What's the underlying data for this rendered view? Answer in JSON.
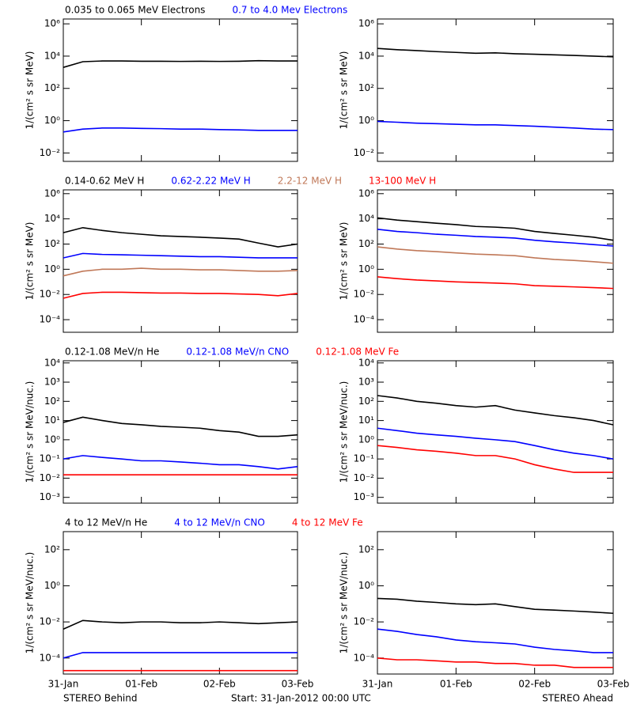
{
  "x_axis": {
    "xlim": [
      0,
      3
    ],
    "xticks": [
      {
        "value": 0,
        "label": "31-Jan"
      },
      {
        "value": 1,
        "label": "01-Feb"
      },
      {
        "value": 2,
        "label": "02-Feb"
      },
      {
        "value": 3,
        "label": "03-Feb"
      }
    ]
  },
  "footer": {
    "left": "STEREO Behind",
    "center": "Start: 31-Jan-2012 00:00 UTC",
    "right": "STEREO Ahead"
  },
  "chart_data": [
    {
      "type": "line",
      "log_scale": true,
      "grid": false,
      "ylabel": "1/(cm² s sr MeV)",
      "x": [
        0,
        0.25,
        0.5,
        0.75,
        1,
        1.25,
        1.5,
        1.75,
        2,
        2.25,
        2.5,
        2.75,
        3
      ],
      "ylim": [
        0.003,
        2000000
      ],
      "yticks": [
        {
          "value": 0.01,
          "label": "10⁻²"
        },
        {
          "value": 1,
          "label": "10⁰"
        },
        {
          "value": 100,
          "label": "10²"
        },
        {
          "value": 10000,
          "label": "10⁴"
        },
        {
          "value": 1000000,
          "label": "10⁶"
        }
      ],
      "series": [
        {
          "name": "0.035 to 0.065 MeV Electrons",
          "color": "#000000",
          "values": [
            2000,
            4500,
            5000,
            5000,
            4800,
            4800,
            4700,
            4800,
            4700,
            4800,
            5200,
            5000,
            5000
          ]
        },
        {
          "name": "0.7 to 4.0 Mev Electrons",
          "color": "#0000ff",
          "values": [
            0.2,
            0.3,
            0.35,
            0.35,
            0.33,
            0.32,
            0.3,
            0.3,
            0.28,
            0.27,
            0.25,
            0.25,
            0.25
          ]
        }
      ]
    },
    {
      "type": "line",
      "log_scale": true,
      "grid": false,
      "ylabel": "1/(cm² s sr MeV)",
      "x": [
        0,
        0.25,
        0.5,
        0.75,
        1,
        1.25,
        1.5,
        1.75,
        2,
        2.25,
        2.5,
        2.75,
        3
      ],
      "ylim": [
        0.003,
        2000000
      ],
      "yticks": [
        {
          "value": 0.01,
          "label": "10⁻²"
        },
        {
          "value": 1,
          "label": "10⁰"
        },
        {
          "value": 100,
          "label": "10²"
        },
        {
          "value": 10000,
          "label": "10⁴"
        },
        {
          "value": 1000000,
          "label": "10⁶"
        }
      ],
      "series": [
        {
          "color": "#000000",
          "values": [
            30000,
            25000,
            22000,
            19000,
            17000,
            15000,
            16000,
            14000,
            13000,
            12000,
            11000,
            10000,
            9000
          ]
        },
        {
          "color": "#0000ff",
          "values": [
            0.9,
            0.8,
            0.7,
            0.65,
            0.6,
            0.55,
            0.55,
            0.5,
            0.45,
            0.4,
            0.35,
            0.3,
            0.28
          ]
        }
      ]
    },
    {
      "type": "line",
      "log_scale": true,
      "grid": false,
      "ylabel": "1/(cm² s sr MeV)",
      "x": [
        0,
        0.25,
        0.5,
        0.75,
        1,
        1.25,
        1.5,
        1.75,
        2,
        2.25,
        2.5,
        2.75,
        3
      ],
      "ylim": [
        1e-05,
        2000000
      ],
      "yticks": [
        {
          "value": 0.0001,
          "label": "10⁻⁴"
        },
        {
          "value": 0.01,
          "label": "10⁻²"
        },
        {
          "value": 1,
          "label": "10⁰"
        },
        {
          "value": 100,
          "label": "10²"
        },
        {
          "value": 10000,
          "label": "10⁴"
        },
        {
          "value": 1000000,
          "label": "10⁶"
        }
      ],
      "series": [
        {
          "name": "0.14-0.62 MeV H",
          "color": "#000000",
          "values": [
            800,
            2000,
            1200,
            800,
            600,
            450,
            400,
            350,
            300,
            250,
            120,
            60,
            100
          ]
        },
        {
          "name": "0.62-2.22 MeV H",
          "color": "#0000ff",
          "values": [
            8,
            18,
            15,
            14,
            13,
            12,
            11,
            10,
            10,
            9,
            8,
            8,
            8
          ]
        },
        {
          "name": "2.2-12 MeV H",
          "color": "#c07858",
          "values": [
            0.3,
            0.7,
            1,
            1,
            1.2,
            1,
            1,
            0.9,
            0.9,
            0.8,
            0.7,
            0.7,
            0.8
          ]
        },
        {
          "name": "13-100 MeV H",
          "color": "#ff0000",
          "values": [
            0.005,
            0.012,
            0.015,
            0.015,
            0.014,
            0.013,
            0.013,
            0.012,
            0.012,
            0.011,
            0.01,
            0.008,
            0.012
          ]
        }
      ]
    },
    {
      "type": "line",
      "log_scale": true,
      "grid": false,
      "ylabel": "1/(cm² s sr MeV)",
      "x": [
        0,
        0.25,
        0.5,
        0.75,
        1,
        1.25,
        1.5,
        1.75,
        2,
        2.25,
        2.5,
        2.75,
        3
      ],
      "ylim": [
        1e-05,
        2000000
      ],
      "yticks": [
        {
          "value": 0.0001,
          "label": "10⁻⁴"
        },
        {
          "value": 0.01,
          "label": "10⁻²"
        },
        {
          "value": 1,
          "label": "10⁰"
        },
        {
          "value": 100,
          "label": "10²"
        },
        {
          "value": 10000,
          "label": "10⁴"
        },
        {
          "value": 1000000,
          "label": "10⁶"
        }
      ],
      "series": [
        {
          "color": "#000000",
          "values": [
            12000,
            8000,
            6000,
            4500,
            3500,
            2500,
            2200,
            1800,
            1000,
            700,
            500,
            350,
            200
          ]
        },
        {
          "color": "#0000ff",
          "values": [
            1500,
            1000,
            800,
            600,
            500,
            400,
            350,
            300,
            200,
            150,
            120,
            90,
            70
          ]
        },
        {
          "color": "#c07858",
          "values": [
            60,
            40,
            30,
            25,
            20,
            16,
            14,
            12,
            8,
            6,
            5,
            4,
            3
          ]
        },
        {
          "color": "#ff0000",
          "values": [
            0.25,
            0.18,
            0.14,
            0.12,
            0.1,
            0.09,
            0.08,
            0.07,
            0.05,
            0.045,
            0.04,
            0.035,
            0.03
          ]
        }
      ]
    },
    {
      "type": "line",
      "log_scale": true,
      "grid": false,
      "ylabel": "1/(cm² s sr MeV/nuc.)",
      "x": [
        0,
        0.25,
        0.5,
        0.75,
        1,
        1.25,
        1.5,
        1.75,
        2,
        2.25,
        2.5,
        2.75,
        3
      ],
      "ylim": [
        0.0005,
        13000
      ],
      "yticks": [
        {
          "value": 0.001,
          "label": "10⁻³"
        },
        {
          "value": 0.01,
          "label": "10⁻²"
        },
        {
          "value": 0.1,
          "label": "10⁻¹"
        },
        {
          "value": 1,
          "label": "10⁰"
        },
        {
          "value": 10,
          "label": "10¹"
        },
        {
          "value": 100,
          "label": "10²"
        },
        {
          "value": 1000,
          "label": "10³"
        },
        {
          "value": 10000,
          "label": "10⁴"
        }
      ],
      "series": [
        {
          "name": "0.12-1.08 MeV/n He",
          "color": "#000000",
          "values": [
            8,
            15,
            10,
            7,
            6,
            5,
            4.5,
            4,
            3,
            2.5,
            1.5,
            1.5,
            1.8
          ]
        },
        {
          "name": "0.12-1.08 MeV/n CNO",
          "color": "#0000ff",
          "values": [
            0.1,
            0.15,
            0.12,
            0.1,
            0.08,
            0.08,
            0.07,
            0.06,
            0.05,
            0.05,
            0.04,
            0.03,
            0.04
          ]
        },
        {
          "name": "0.12-1.08 MeV Fe",
          "color": "#ff0000",
          "values": [
            0.015,
            0.015,
            0.015,
            0.015,
            0.015,
            0.015,
            0.015,
            0.015,
            0.015,
            0.015,
            0.015,
            0.015,
            0.015
          ]
        }
      ]
    },
    {
      "type": "line",
      "log_scale": true,
      "grid": false,
      "ylabel": "1/(cm² s sr MeV/nuc.)",
      "x": [
        0,
        0.25,
        0.5,
        0.75,
        1,
        1.25,
        1.5,
        1.75,
        2,
        2.25,
        2.5,
        2.75,
        3
      ],
      "ylim": [
        0.0005,
        13000
      ],
      "yticks": [
        {
          "value": 0.001,
          "label": "10⁻³"
        },
        {
          "value": 0.01,
          "label": "10⁻²"
        },
        {
          "value": 0.1,
          "label": "10⁻¹"
        },
        {
          "value": 1,
          "label": "10⁰"
        },
        {
          "value": 10,
          "label": "10¹"
        },
        {
          "value": 100,
          "label": "10²"
        },
        {
          "value": 1000,
          "label": "10³"
        },
        {
          "value": 10000,
          "label": "10⁴"
        }
      ],
      "series": [
        {
          "color": "#000000",
          "values": [
            200,
            150,
            100,
            80,
            60,
            50,
            60,
            35,
            25,
            18,
            14,
            10,
            6
          ]
        },
        {
          "color": "#0000ff",
          "values": [
            4,
            3,
            2.2,
            1.8,
            1.5,
            1.2,
            1,
            0.8,
            0.5,
            0.3,
            0.2,
            0.15,
            0.1
          ]
        },
        {
          "color": "#ff0000",
          "values": [
            0.5,
            0.4,
            0.3,
            0.25,
            0.2,
            0.15,
            0.15,
            0.1,
            0.05,
            0.03,
            0.02,
            0.02,
            0.02
          ]
        }
      ]
    },
    {
      "type": "line",
      "log_scale": true,
      "grid": false,
      "ylabel": "1/(cm² s sr MeV/nuc.)",
      "x": [
        0,
        0.25,
        0.5,
        0.75,
        1,
        1.25,
        1.5,
        1.75,
        2,
        2.25,
        2.5,
        2.75,
        3
      ],
      "ylim": [
        1.3e-05,
        1000
      ],
      "yticks": [
        {
          "value": 0.0001,
          "label": "10⁻⁴"
        },
        {
          "value": 0.01,
          "label": "10⁻²"
        },
        {
          "value": 1,
          "label": "10⁰"
        },
        {
          "value": 100,
          "label": "10²"
        }
      ],
      "series": [
        {
          "name": "4 to 12 MeV/n He",
          "color": "#000000",
          "values": [
            0.004,
            0.012,
            0.01,
            0.009,
            0.01,
            0.01,
            0.009,
            0.009,
            0.01,
            0.009,
            0.008,
            0.009,
            0.01
          ]
        },
        {
          "name": "4 to 12 MeV/n CNO",
          "color": "#0000ff",
          "values": [
            0.0001,
            0.0002,
            0.0002,
            0.0002,
            0.0002,
            0.0002,
            0.0002,
            0.0002,
            0.0002,
            0.0002,
            0.0002,
            0.0002,
            0.0002
          ]
        },
        {
          "name": "4 to 12 MeV Fe",
          "color": "#ff0000",
          "values": [
            2e-05,
            2e-05,
            2e-05,
            2e-05,
            2e-05,
            2e-05,
            2e-05,
            2e-05,
            2e-05,
            2e-05,
            2e-05,
            2e-05,
            2e-05
          ]
        }
      ]
    },
    {
      "type": "line",
      "log_scale": true,
      "grid": false,
      "ylabel": "1/(cm² s sr MeV/nuc.)",
      "x": [
        0,
        0.25,
        0.5,
        0.75,
        1,
        1.25,
        1.5,
        1.75,
        2,
        2.25,
        2.5,
        2.75,
        3
      ],
      "ylim": [
        1.3e-05,
        1000
      ],
      "yticks": [
        {
          "value": 0.0001,
          "label": "10⁻⁴"
        },
        {
          "value": 0.01,
          "label": "10⁻²"
        },
        {
          "value": 1,
          "label": "10⁰"
        },
        {
          "value": 100,
          "label": "10²"
        }
      ],
      "series": [
        {
          "color": "#000000",
          "values": [
            0.2,
            0.18,
            0.14,
            0.12,
            0.1,
            0.09,
            0.1,
            0.07,
            0.05,
            0.045,
            0.04,
            0.035,
            0.03
          ]
        },
        {
          "color": "#0000ff",
          "values": [
            0.004,
            0.003,
            0.002,
            0.0015,
            0.001,
            0.0008,
            0.0007,
            0.0006,
            0.0004,
            0.0003,
            0.00025,
            0.0002,
            0.0002
          ]
        },
        {
          "color": "#ff0000",
          "values": [
            0.0001,
            8e-05,
            8e-05,
            7e-05,
            6e-05,
            6e-05,
            5e-05,
            5e-05,
            4e-05,
            4e-05,
            3e-05,
            3e-05,
            3e-05
          ]
        }
      ]
    }
  ]
}
